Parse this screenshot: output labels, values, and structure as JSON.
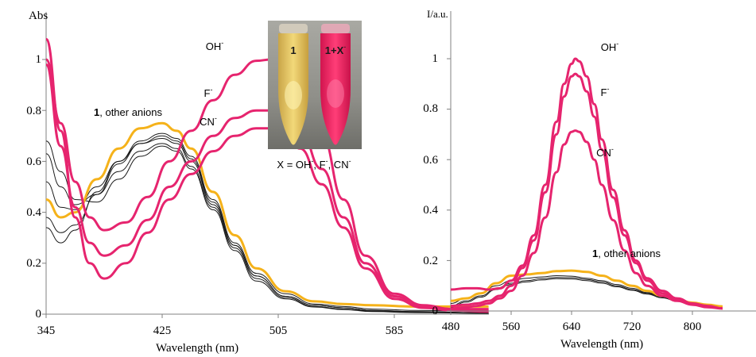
{
  "colors": {
    "anion": "#e6246e",
    "probe": "#f5b21a",
    "other": "#1a1a1a",
    "axis": "#808080"
  },
  "chart_data": [
    {
      "type": "line",
      "panel": "absorption",
      "ylabel": "Abs",
      "xlabel": "Wavelength (nm)",
      "xlim": [
        345,
        650
      ],
      "ylim": [
        0,
        1.1
      ],
      "x_ticks": [
        "345",
        "425",
        "505",
        "585"
      ],
      "y_ticks": [
        "0",
        "0.2",
        "0.4",
        "0.6",
        "0.8",
        "1"
      ],
      "grid": false,
      "annotations": {
        "oh_base": "OH",
        "oh_sup": "-",
        "f_base": "F",
        "f_sup": "-",
        "cn_base": "CN",
        "cn_sup": "-",
        "probe_bold": "1",
        "probe_rest": ", other anions",
        "inset_left": "1",
        "inset_right_bold": "1+X",
        "inset_right_sup": "-",
        "inset_caption_a": "X = OH",
        "inset_caption_sup1": "-",
        "inset_caption_b": ", F",
        "inset_caption_sup2": "-",
        "inset_caption_c": ", CN",
        "inset_caption_sup3": "-"
      },
      "series": [
        {
          "color_key": "anion",
          "x": [
            345,
            355,
            365,
            375,
            385,
            400,
            415,
            430,
            445,
            460,
            475,
            490,
            500,
            510,
            520,
            535,
            550,
            565,
            585,
            605,
            625,
            650
          ],
          "y": [
            1.0,
            0.75,
            0.52,
            0.38,
            0.33,
            0.36,
            0.46,
            0.6,
            0.72,
            0.84,
            0.94,
            0.995,
            1.0,
            0.97,
            0.89,
            0.7,
            0.45,
            0.23,
            0.08,
            0.035,
            0.02,
            0.02
          ]
        },
        {
          "color_key": "anion",
          "x": [
            345,
            355,
            365,
            375,
            385,
            400,
            415,
            430,
            445,
            460,
            475,
            490,
            500,
            510,
            520,
            535,
            550,
            565,
            585,
            605,
            625,
            650
          ],
          "y": [
            0.98,
            0.66,
            0.42,
            0.28,
            0.23,
            0.27,
            0.37,
            0.5,
            0.6,
            0.7,
            0.77,
            0.8,
            0.8,
            0.78,
            0.72,
            0.57,
            0.38,
            0.2,
            0.07,
            0.03,
            0.02,
            0.015
          ]
        },
        {
          "color_key": "anion",
          "x": [
            345,
            355,
            365,
            375,
            385,
            400,
            415,
            430,
            445,
            460,
            475,
            490,
            500,
            510,
            520,
            535,
            550,
            565,
            585,
            605,
            625,
            650
          ],
          "y": [
            1.08,
            0.72,
            0.38,
            0.2,
            0.14,
            0.2,
            0.32,
            0.45,
            0.55,
            0.64,
            0.7,
            0.73,
            0.73,
            0.71,
            0.65,
            0.51,
            0.34,
            0.18,
            0.06,
            0.025,
            0.015,
            0.01
          ]
        },
        {
          "color_key": "probe",
          "x": [
            345,
            355,
            365,
            380,
            395,
            410,
            425,
            435,
            445,
            460,
            475,
            490,
            510,
            530,
            550,
            570,
            600,
            650
          ],
          "y": [
            0.45,
            0.38,
            0.4,
            0.53,
            0.65,
            0.73,
            0.75,
            0.72,
            0.65,
            0.48,
            0.31,
            0.18,
            0.09,
            0.05,
            0.04,
            0.035,
            0.03,
            0.03
          ]
        },
        {
          "color_key": "other",
          "x": [
            345,
            355,
            365,
            380,
            395,
            410,
            425,
            435,
            445,
            460,
            475,
            490,
            510,
            530,
            550,
            570,
            600,
            650
          ],
          "y": [
            0.34,
            0.28,
            0.33,
            0.48,
            0.6,
            0.68,
            0.71,
            0.69,
            0.62,
            0.45,
            0.28,
            0.16,
            0.08,
            0.04,
            0.03,
            0.02,
            0.015,
            0.01
          ]
        },
        {
          "color_key": "other",
          "x": [
            345,
            355,
            365,
            380,
            395,
            410,
            425,
            435,
            445,
            460,
            475,
            490,
            510,
            530,
            550,
            570,
            600,
            650
          ],
          "y": [
            0.38,
            0.32,
            0.35,
            0.47,
            0.59,
            0.67,
            0.7,
            0.68,
            0.61,
            0.44,
            0.27,
            0.15,
            0.07,
            0.035,
            0.025,
            0.015,
            0.01,
            0.005
          ]
        },
        {
          "color_key": "other",
          "x": [
            345,
            355,
            365,
            380,
            395,
            410,
            425,
            435,
            445,
            460,
            475,
            490,
            510,
            530,
            550,
            570,
            600,
            650
          ],
          "y": [
            0.52,
            0.42,
            0.41,
            0.5,
            0.6,
            0.67,
            0.69,
            0.67,
            0.6,
            0.43,
            0.27,
            0.15,
            0.07,
            0.035,
            0.025,
            0.015,
            0.01,
            0.005
          ]
        },
        {
          "color_key": "other",
          "x": [
            345,
            355,
            365,
            380,
            395,
            410,
            425,
            435,
            445,
            460,
            475,
            490,
            510,
            530,
            550,
            570,
            600,
            650
          ],
          "y": [
            0.63,
            0.5,
            0.43,
            0.47,
            0.56,
            0.64,
            0.67,
            0.65,
            0.58,
            0.42,
            0.26,
            0.14,
            0.065,
            0.03,
            0.02,
            0.012,
            0.008,
            0.004
          ]
        },
        {
          "color_key": "other",
          "x": [
            345,
            355,
            365,
            380,
            395,
            410,
            425,
            435,
            445,
            460,
            475,
            490,
            510,
            530,
            550,
            570,
            600,
            650
          ],
          "y": [
            0.68,
            0.56,
            0.45,
            0.44,
            0.53,
            0.62,
            0.66,
            0.64,
            0.57,
            0.41,
            0.25,
            0.13,
            0.06,
            0.028,
            0.018,
            0.01,
            0.006,
            0.003
          ]
        }
      ]
    },
    {
      "type": "line",
      "panel": "emission",
      "ylabel": "I/a.u.",
      "xlabel": "Wavelength (nm)",
      "xlim": [
        480,
        840
      ],
      "ylim": [
        0,
        1.13
      ],
      "x_ticks": [
        "480",
        "560",
        "640",
        "720",
        "800"
      ],
      "y_ticks": [
        "0",
        "0.2",
        "0.4",
        "0.6",
        "0.8",
        "1"
      ],
      "grid": false,
      "annotations": {
        "oh_base": "OH",
        "oh_sup": "-",
        "f_base": "F",
        "f_sup": "-",
        "cn_base": "CN",
        "cn_sup": "-",
        "probe_bold": "1",
        "probe_rest": ", other anions"
      },
      "series": [
        {
          "color_key": "anion",
          "x": [
            480,
            500,
            515,
            530,
            545,
            560,
            575,
            590,
            605,
            620,
            630,
            640,
            645,
            650,
            660,
            670,
            680,
            695,
            710,
            725,
            740,
            760,
            780,
            800,
            820,
            840
          ],
          "y": [
            0.085,
            0.09,
            0.09,
            0.085,
            0.09,
            0.12,
            0.18,
            0.3,
            0.5,
            0.75,
            0.9,
            0.98,
            1.0,
            0.99,
            0.93,
            0.82,
            0.68,
            0.48,
            0.32,
            0.2,
            0.13,
            0.08,
            0.05,
            0.03,
            0.02,
            0.01
          ]
        },
        {
          "color_key": "anion",
          "x": [
            480,
            500,
            515,
            530,
            545,
            560,
            575,
            590,
            605,
            620,
            630,
            640,
            645,
            650,
            660,
            670,
            680,
            695,
            710,
            725,
            740,
            760,
            780,
            800,
            820,
            840
          ],
          "y": [
            0.02,
            0.025,
            0.03,
            0.04,
            0.06,
            0.1,
            0.17,
            0.28,
            0.47,
            0.7,
            0.85,
            0.93,
            0.94,
            0.93,
            0.87,
            0.77,
            0.64,
            0.45,
            0.3,
            0.19,
            0.12,
            0.07,
            0.045,
            0.028,
            0.018,
            0.01
          ]
        },
        {
          "color_key": "anion",
          "x": [
            480,
            500,
            515,
            530,
            545,
            560,
            575,
            590,
            605,
            620,
            630,
            640,
            645,
            650,
            660,
            670,
            680,
            695,
            710,
            725,
            740,
            760,
            780,
            800,
            820,
            840
          ],
          "y": [
            0.01,
            0.015,
            0.02,
            0.03,
            0.05,
            0.08,
            0.14,
            0.23,
            0.37,
            0.55,
            0.66,
            0.71,
            0.715,
            0.71,
            0.67,
            0.6,
            0.5,
            0.36,
            0.24,
            0.15,
            0.1,
            0.06,
            0.04,
            0.025,
            0.015,
            0.01
          ]
        },
        {
          "color_key": "probe",
          "x": [
            480,
            500,
            520,
            540,
            560,
            580,
            600,
            620,
            640,
            660,
            680,
            700,
            720,
            740,
            760,
            780,
            800,
            820,
            840
          ],
          "y": [
            0.04,
            0.05,
            0.07,
            0.11,
            0.14,
            0.145,
            0.15,
            0.158,
            0.16,
            0.155,
            0.14,
            0.12,
            0.1,
            0.08,
            0.06,
            0.045,
            0.033,
            0.025,
            0.018
          ]
        },
        {
          "color_key": "other",
          "x": [
            480,
            500,
            520,
            540,
            560,
            580,
            600,
            620,
            640,
            660,
            680,
            700,
            720,
            740,
            760,
            780,
            800,
            820,
            840
          ],
          "y": [
            0.03,
            0.05,
            0.07,
            0.1,
            0.12,
            0.13,
            0.135,
            0.14,
            0.138,
            0.13,
            0.12,
            0.105,
            0.09,
            0.073,
            0.057,
            0.043,
            0.032,
            0.024,
            0.017
          ]
        },
        {
          "color_key": "other",
          "x": [
            480,
            500,
            520,
            540,
            560,
            580,
            600,
            620,
            640,
            660,
            680,
            700,
            720,
            740,
            760,
            780,
            800,
            820,
            840
          ],
          "y": [
            0.02,
            0.04,
            0.06,
            0.09,
            0.11,
            0.12,
            0.128,
            0.133,
            0.132,
            0.125,
            0.115,
            0.1,
            0.085,
            0.07,
            0.055,
            0.041,
            0.03,
            0.022,
            0.016
          ]
        },
        {
          "color_key": "other",
          "x": [
            480,
            500,
            520,
            540,
            560,
            580,
            600,
            620,
            640,
            660,
            680,
            700,
            720,
            740,
            760,
            780,
            800,
            820,
            840
          ],
          "y": [
            0.015,
            0.035,
            0.055,
            0.085,
            0.105,
            0.115,
            0.123,
            0.128,
            0.127,
            0.12,
            0.11,
            0.096,
            0.082,
            0.067,
            0.052,
            0.039,
            0.029,
            0.021,
            0.015
          ]
        }
      ]
    }
  ]
}
